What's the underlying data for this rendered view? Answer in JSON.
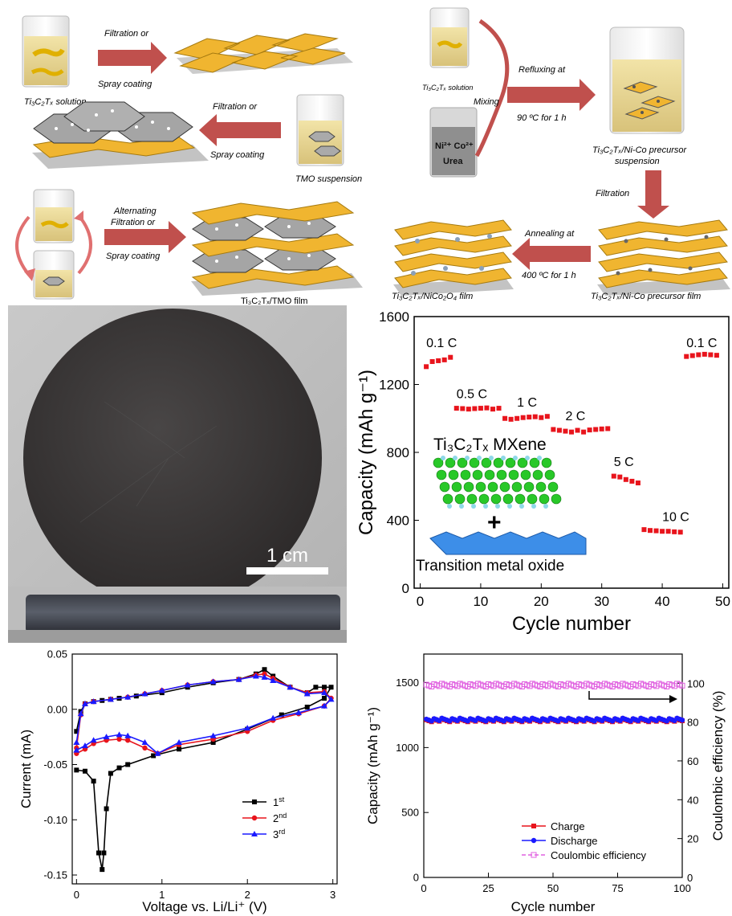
{
  "schematic_left": {
    "step1": {
      "arrow": [
        "Filtration or",
        "Spray coating"
      ],
      "source_label": "Ti₃C₂Tₓ solution"
    },
    "step2": {
      "arrow": [
        "Filtration or",
        "Spray coating"
      ],
      "source_label": "TMO suspension"
    },
    "step3": {
      "arrow": [
        "Alternating",
        "Filtration or",
        "Spray coating"
      ],
      "product_label": "Ti₃C₂Tₓ/TMO film"
    }
  },
  "schematic_right": {
    "solution_label": "Ti₃C₂Tₓ solution",
    "beaker_ions": "Ni²⁺  Co²⁺",
    "beaker_urea": "Urea",
    "mixing": "Mixing",
    "reflux": [
      "Refluxing at",
      "90 ºC for 1 h"
    ],
    "suspension_label": [
      "Ti₃C₂Tₓ/Ni-Co precursor",
      "suspension"
    ],
    "filtration": "Filtration",
    "precursor_film_label": "Ti₃C₂Tₓ/Ni-Co precursor film",
    "anneal": [
      "Annealing at",
      "400 ºC for 1 h"
    ],
    "product_label": "Ti₃C₂Tₓ/NiCo₂O₄ film"
  },
  "photo": {
    "scale_bar": "1 cm"
  },
  "colors": {
    "mxene": "#f0b530",
    "tmo": "#8c8c8c",
    "arrow": "#c0504d",
    "red": "#e8141c",
    "blue": "#1a1aff",
    "pink": "#e060e0"
  },
  "chart_data": [
    {
      "type": "scatter",
      "xlabel": "Cycle number",
      "ylabel": "Capacity (mAh g⁻¹)",
      "xlim": [
        -1,
        51
      ],
      "ylim": [
        0,
        1600
      ],
      "xticks": [
        0,
        10,
        20,
        30,
        40,
        50
      ],
      "yticks": [
        0,
        400,
        800,
        1200,
        1600
      ],
      "series": [
        {
          "x": [
            1,
            2,
            3,
            4,
            5,
            6,
            7,
            8,
            9,
            10,
            11,
            12,
            13,
            14,
            15,
            16,
            17,
            18,
            19,
            20,
            21,
            22,
            23,
            24,
            25,
            26,
            27,
            28,
            29,
            30,
            31,
            32,
            33,
            34,
            35,
            36,
            37,
            38,
            39,
            40,
            41,
            42,
            43,
            44,
            45,
            46,
            47,
            48,
            49
          ],
          "y": [
            1305,
            1335,
            1340,
            1345,
            1360,
            1060,
            1058,
            1055,
            1058,
            1060,
            1062,
            1055,
            1060,
            1000,
            995,
            1000,
            1005,
            1008,
            1010,
            1005,
            1012,
            935,
            930,
            925,
            920,
            930,
            920,
            932,
            935,
            938,
            940,
            660,
            655,
            640,
            630,
            620,
            345,
            340,
            338,
            335,
            335,
            332,
            330,
            1365,
            1370,
            1375,
            1378,
            1375,
            1372
          ]
        }
      ],
      "annotations": [
        "0.1 C",
        "0.5 C",
        "1 C",
        "2 C",
        "5 C",
        "10 C",
        "0.1 C"
      ],
      "inset_labels": {
        "top": "Ti₃C₂Tₓ MXene",
        "plus": "+",
        "bottom": "Transition metal oxide"
      }
    },
    {
      "type": "line",
      "xlabel": "Voltage vs. Li/Li⁺ (V)",
      "ylabel": "Current (mA)",
      "xlim": [
        -0.05,
        3.05
      ],
      "ylim": [
        -0.158,
        0.05
      ],
      "xticks": [
        0,
        1,
        2,
        3
      ],
      "yticks": [
        0.05,
        0.0,
        -0.05,
        -0.1,
        -0.15
      ],
      "legend_position": "lower-right",
      "series": [
        {
          "name": "1st",
          "color": "#000000",
          "marker": "square",
          "x": [
            0.0,
            0.05,
            0.1,
            0.2,
            0.3,
            0.4,
            0.5,
            0.7,
            1.0,
            1.3,
            1.6,
            1.9,
            2.1,
            2.2,
            2.3,
            2.5,
            2.7,
            2.8,
            2.9,
            2.98,
            2.9,
            2.7,
            2.4,
            2.0,
            1.6,
            1.2,
            0.9,
            0.6,
            0.5,
            0.4,
            0.35,
            0.32,
            0.3,
            0.26,
            0.2,
            0.1,
            0.0
          ],
          "y": [
            -0.02,
            -0.002,
            0.005,
            0.007,
            0.008,
            0.009,
            0.01,
            0.012,
            0.015,
            0.02,
            0.024,
            0.027,
            0.032,
            0.036,
            0.03,
            0.02,
            0.015,
            0.02,
            0.02,
            0.02,
            0.01,
            0.002,
            -0.005,
            -0.018,
            -0.03,
            -0.036,
            -0.042,
            -0.05,
            -0.053,
            -0.058,
            -0.09,
            -0.13,
            -0.145,
            -0.13,
            -0.065,
            -0.056,
            -0.055
          ]
        },
        {
          "name": "2nd",
          "color": "#e8141c",
          "marker": "circle",
          "x": [
            0.0,
            0.05,
            0.1,
            0.2,
            0.4,
            0.6,
            0.8,
            1.0,
            1.3,
            1.6,
            1.9,
            2.1,
            2.2,
            2.3,
            2.5,
            2.7,
            2.9,
            2.98,
            2.9,
            2.6,
            2.3,
            2.0,
            1.6,
            1.2,
            0.95,
            0.8,
            0.6,
            0.5,
            0.35,
            0.2,
            0.1,
            0.0
          ],
          "y": [
            -0.035,
            -0.005,
            0.005,
            0.007,
            0.009,
            0.011,
            0.014,
            0.017,
            0.022,
            0.025,
            0.027,
            0.031,
            0.032,
            0.028,
            0.02,
            0.015,
            0.016,
            0.01,
            0.003,
            -0.004,
            -0.01,
            -0.02,
            -0.027,
            -0.032,
            -0.04,
            -0.035,
            -0.028,
            -0.027,
            -0.028,
            -0.031,
            -0.036,
            -0.04
          ]
        },
        {
          "name": "3rd",
          "color": "#1a1aff",
          "marker": "triangle",
          "x": [
            0.0,
            0.05,
            0.1,
            0.2,
            0.4,
            0.6,
            0.8,
            1.0,
            1.3,
            1.6,
            1.9,
            2.1,
            2.2,
            2.3,
            2.5,
            2.7,
            2.9,
            2.98,
            2.9,
            2.6,
            2.3,
            2.0,
            1.6,
            1.2,
            0.95,
            0.8,
            0.6,
            0.5,
            0.35,
            0.2,
            0.1,
            0.0
          ],
          "y": [
            -0.03,
            -0.004,
            0.005,
            0.007,
            0.009,
            0.011,
            0.014,
            0.017,
            0.022,
            0.025,
            0.027,
            0.03,
            0.029,
            0.026,
            0.02,
            0.014,
            0.015,
            0.009,
            0.003,
            -0.003,
            -0.008,
            -0.017,
            -0.024,
            -0.03,
            -0.04,
            -0.03,
            -0.024,
            -0.023,
            -0.025,
            -0.028,
            -0.033,
            -0.037
          ]
        }
      ]
    },
    {
      "type": "scatter",
      "xlabel": "Cycle number",
      "ylabel": "Capacity (mAh g⁻¹)",
      "ylabel_right": "Coulombic efficiency (%)",
      "xlim": [
        0,
        100
      ],
      "ylim": [
        0,
        1720
      ],
      "ylim_right": [
        0,
        115
      ],
      "xticks": [
        0,
        25,
        50,
        75,
        100
      ],
      "yticks": [
        0,
        500,
        1000,
        1500
      ],
      "yticks_right": [
        0,
        20,
        40,
        60,
        80,
        100
      ],
      "legend_position": "lower-right",
      "series": [
        {
          "name": "Charge",
          "color": "#e8141c",
          "marker": "square",
          "value": 1210,
          "x_range": [
            1,
            100
          ]
        },
        {
          "name": "Discharge",
          "color": "#1a1aff",
          "marker": "circle",
          "value": 1215,
          "x_range": [
            1,
            100
          ]
        },
        {
          "name": "Coulombic efficiency",
          "color": "#e060e0",
          "marker": "open-square",
          "value": 99,
          "axis": "right",
          "x_range": [
            1,
            100
          ]
        }
      ]
    }
  ]
}
